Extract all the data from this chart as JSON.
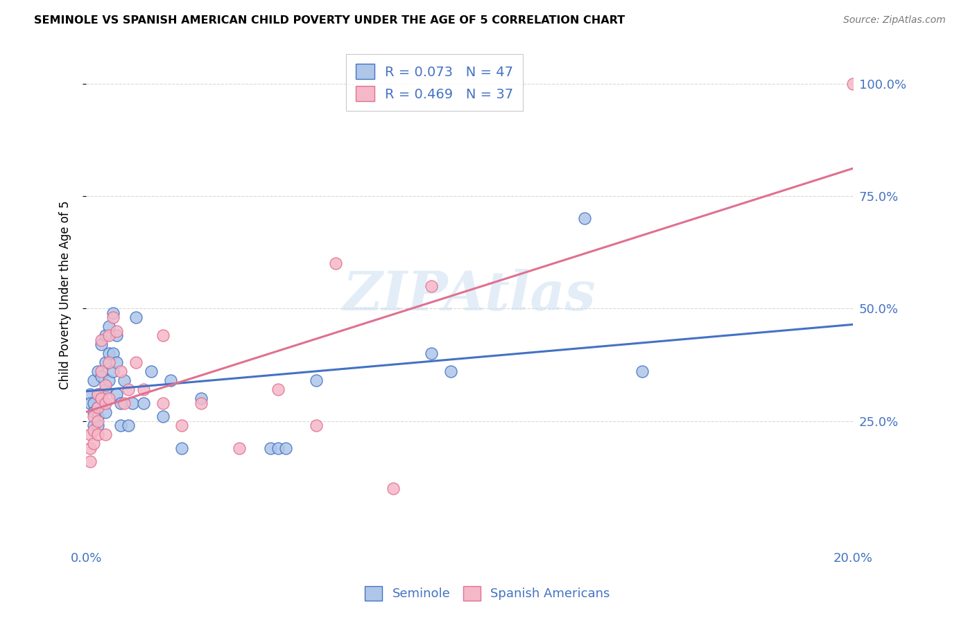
{
  "title": "SEMINOLE VS SPANISH AMERICAN CHILD POVERTY UNDER THE AGE OF 5 CORRELATION CHART",
  "source": "Source: ZipAtlas.com",
  "ylabel": "Child Poverty Under the Age of 5",
  "yticks": [
    "100.0%",
    "75.0%",
    "50.0%",
    "25.0%"
  ],
  "ytick_vals": [
    1.0,
    0.75,
    0.5,
    0.25
  ],
  "legend_r1": "R = 0.073",
  "legend_n1": "N = 47",
  "legend_r2": "R = 0.469",
  "legend_n2": "N = 37",
  "seminole_color": "#aec6e8",
  "spanish_color": "#f5b8c8",
  "line_seminole_color": "#4472c4",
  "line_spanish_color": "#e07090",
  "watermark": "ZIPAtlas",
  "seminole_x": [
    0.001,
    0.001,
    0.002,
    0.002,
    0.002,
    0.002,
    0.003,
    0.003,
    0.003,
    0.003,
    0.003,
    0.004,
    0.004,
    0.004,
    0.005,
    0.005,
    0.005,
    0.005,
    0.006,
    0.006,
    0.006,
    0.007,
    0.007,
    0.007,
    0.008,
    0.008,
    0.008,
    0.009,
    0.009,
    0.01,
    0.011,
    0.012,
    0.013,
    0.015,
    0.017,
    0.02,
    0.022,
    0.025,
    0.03,
    0.048,
    0.05,
    0.052,
    0.06,
    0.09,
    0.095,
    0.13,
    0.145
  ],
  "seminole_y": [
    0.31,
    0.29,
    0.34,
    0.29,
    0.27,
    0.24,
    0.36,
    0.31,
    0.28,
    0.26,
    0.24,
    0.42,
    0.35,
    0.3,
    0.44,
    0.38,
    0.32,
    0.27,
    0.46,
    0.4,
    0.34,
    0.49,
    0.4,
    0.36,
    0.44,
    0.38,
    0.31,
    0.29,
    0.24,
    0.34,
    0.24,
    0.29,
    0.48,
    0.29,
    0.36,
    0.26,
    0.34,
    0.19,
    0.3,
    0.19,
    0.19,
    0.19,
    0.34,
    0.4,
    0.36,
    0.7,
    0.36
  ],
  "spanish_x": [
    0.001,
    0.001,
    0.001,
    0.002,
    0.002,
    0.002,
    0.003,
    0.003,
    0.003,
    0.003,
    0.004,
    0.004,
    0.004,
    0.005,
    0.005,
    0.005,
    0.006,
    0.006,
    0.006,
    0.007,
    0.008,
    0.009,
    0.01,
    0.011,
    0.013,
    0.015,
    0.02,
    0.02,
    0.025,
    0.03,
    0.04,
    0.05,
    0.06,
    0.065,
    0.08,
    0.09,
    0.2
  ],
  "spanish_y": [
    0.19,
    0.22,
    0.16,
    0.26,
    0.23,
    0.2,
    0.31,
    0.28,
    0.25,
    0.22,
    0.43,
    0.36,
    0.3,
    0.33,
    0.29,
    0.22,
    0.44,
    0.38,
    0.3,
    0.48,
    0.45,
    0.36,
    0.29,
    0.32,
    0.38,
    0.32,
    0.44,
    0.29,
    0.24,
    0.29,
    0.19,
    0.32,
    0.24,
    0.6,
    0.1,
    0.55,
    1.0
  ],
  "seminole_R": 0.073,
  "seminole_N": 47,
  "spanish_R": 0.469,
  "spanish_N": 37,
  "xlim": [
    0.0,
    0.2
  ],
  "ylim": [
    -0.02,
    1.08
  ],
  "background_color": "#ffffff",
  "grid_color": "#d8d8d8"
}
